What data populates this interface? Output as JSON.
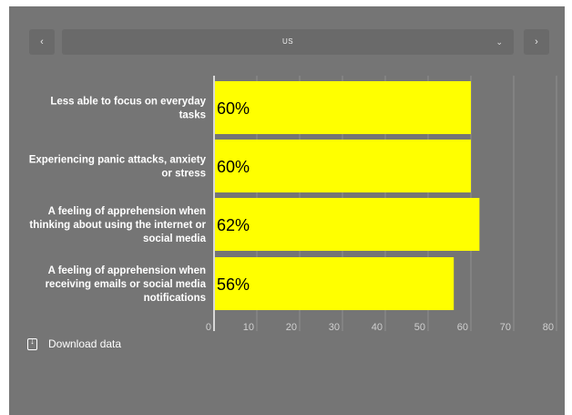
{
  "navigation": {
    "prev_symbol": "‹",
    "next_symbol": "›",
    "selected_region": "US",
    "dropdown_symbol": "⌄"
  },
  "download": {
    "label": "Download data"
  },
  "colors": {
    "background": "#757575",
    "bar": "#ffff00",
    "grid": "#8f8f8f"
  },
  "chart_data": {
    "type": "bar",
    "orientation": "horizontal",
    "categories": [
      [
        "Less able to focus on everyday",
        "tasks"
      ],
      [
        "Experiencing panic attacks, anxiety",
        "or stress"
      ],
      [
        "A feeling of apprehension when",
        "thinking about using the internet or",
        "social media"
      ],
      [
        "A feeling of apprehension when",
        "receiving emails or social media",
        "notifications"
      ]
    ],
    "values": [
      60,
      60,
      62,
      56
    ],
    "value_labels": [
      "60%",
      "60%",
      "62%",
      "56%"
    ],
    "xlim": [
      0,
      80
    ],
    "ticks": [
      0,
      10,
      20,
      30,
      40,
      50,
      60,
      70,
      80
    ],
    "grid": true
  }
}
